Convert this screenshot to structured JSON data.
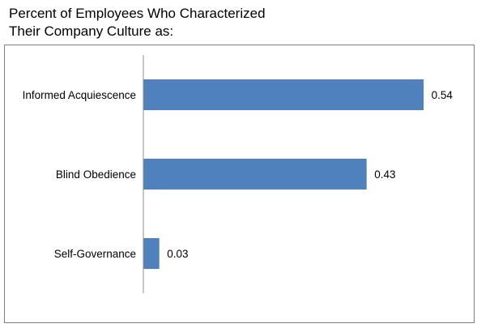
{
  "chart_data": {
    "type": "bar",
    "orientation": "horizontal",
    "title_lines": [
      "Percent of Employees Who Characterized",
      "Their Company Culture as:"
    ],
    "categories": [
      "Informed Acquiescence",
      "Blind Obedience",
      "Self-Governance"
    ],
    "values": [
      0.54,
      0.43,
      0.03
    ],
    "value_labels": [
      "0.54",
      "0.43",
      "0.03"
    ],
    "xlim": [
      0,
      0.6
    ],
    "grid": false,
    "legend": "none",
    "bar_color": "#4f81bd",
    "axis_color": "#8c8c8c"
  }
}
